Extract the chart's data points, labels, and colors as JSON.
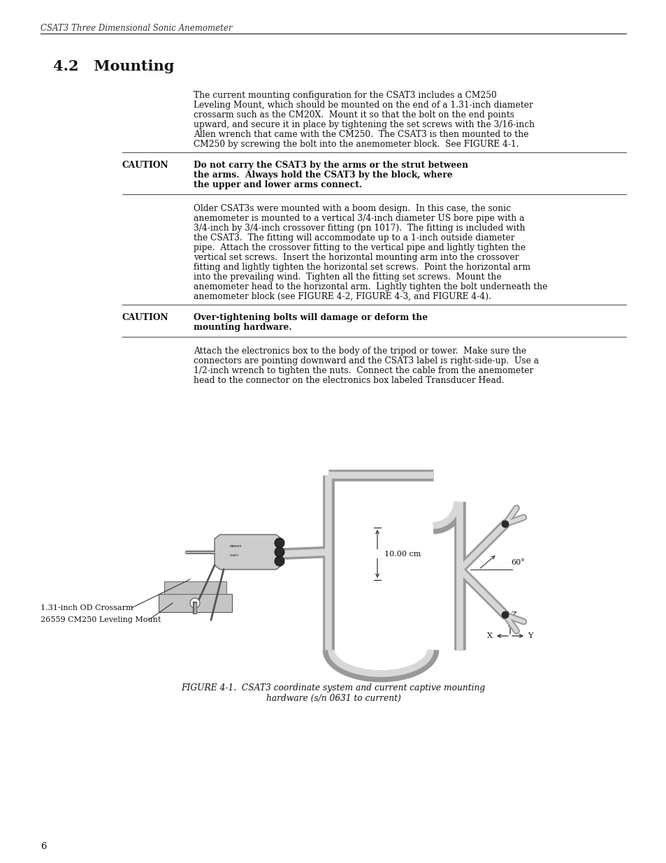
{
  "bg_color": "#ffffff",
  "header_text": "CSAT3 Three Dimensional Sonic Anemometer",
  "section_title": "4.2   Mounting",
  "para1_lines": [
    "The current mounting configuration for the CSAT3 includes a CM250",
    "Leveling Mount, which should be mounted on the end of a 1.31-inch diameter",
    "crossarm such as the CM20X.  Mount it so that the bolt on the end points",
    "upward, and secure it in place by tightening the set screws with the 3/16-inch",
    "Allen wrench that came with the CM250.  The CSAT3 is then mounted to the",
    "CM250 by screwing the bolt into the anemometer block.  See FIGURE 4-1."
  ],
  "caution1_label": "CAUTION",
  "caution1_lines": [
    "Do not carry the CSAT3 by the arms or the strut between",
    "the arms.  Always hold the CSAT3 by the block, where",
    "the upper and lower arms connect."
  ],
  "para2_lines": [
    "Older CSAT3s were mounted with a boom design.  In this case, the sonic",
    "anemometer is mounted to a vertical 3/4-inch diameter US bore pipe with a",
    "3/4-inch by 3/4-inch crossover fitting (pn 1017).  The fitting is included with",
    "the CSAT3.  The fitting will accommodate up to a 1-inch outside diameter",
    "pipe.  Attach the crossover fitting to the vertical pipe and lightly tighten the",
    "vertical set screws.  Insert the horizontal mounting arm into the crossover",
    "fitting and lightly tighten the horizontal set screws.  Point the horizontal arm",
    "into the prevailing wind.  Tighten all the fitting set screws.  Mount the",
    "anemometer head to the horizontal arm.  Lightly tighten the bolt underneath the",
    "anemometer block (see FIGURE 4-2, FIGURE 4-3, and FIGURE 4-4)."
  ],
  "caution2_label": "CAUTION",
  "caution2_lines": [
    "Over-tightening bolts will damage or deform the",
    "mounting hardware."
  ],
  "para3_lines": [
    "Attach the electronics box to the body of the tripod or tower.  Make sure the",
    "connectors are pointing downward and the CSAT3 label is right-side-up.  Use a",
    "1/2-inch wrench to tighten the nuts.  Connect the cable from the anemometer",
    "head to the connector on the electronics box labeled Transducer Head."
  ],
  "label1": "1.31-inch OD Crossarm",
  "label2": "26559 CM250 Leveling Mount",
  "fig_caption_line1": "FIGURE 4-1.  CSAT3 coordinate system and current captive mounting",
  "fig_caption_line2": "hardware (s/n 0631 to current)",
  "page_number": "6",
  "text_color": "#111111",
  "line_color": "#555555",
  "tube_outer": "#999999",
  "tube_inner": "#d8d8d8"
}
